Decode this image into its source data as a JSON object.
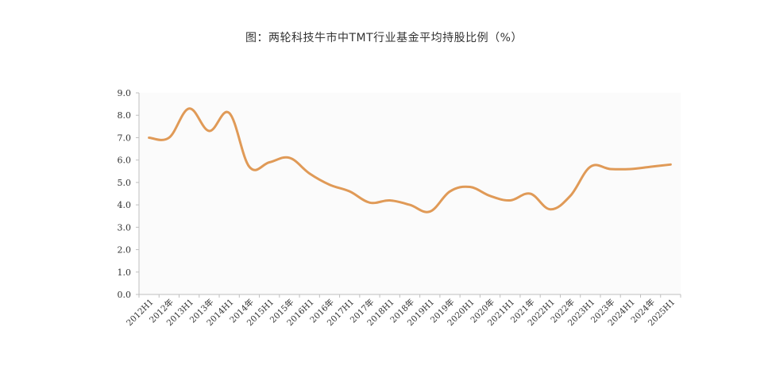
{
  "chart_data": {
    "type": "line",
    "title": "图：两轮科技牛市中TMT行业基金平均持股比例（%）",
    "xlabel": "",
    "ylabel": "",
    "ylim": [
      0,
      9
    ],
    "y_ticks": [
      "0.0",
      "1.0",
      "2.0",
      "3.0",
      "4.0",
      "5.0",
      "6.0",
      "7.0",
      "8.0",
      "9.0"
    ],
    "grid": false,
    "legend": "none",
    "categories": [
      "2012H1",
      "2012年",
      "2013H1",
      "2013年",
      "2014H1",
      "2014年",
      "2015H1",
      "2015年",
      "2016H1",
      "2016年",
      "2017H1",
      "2017年",
      "2018H1",
      "2018年",
      "2019H1",
      "2019年",
      "2020H1",
      "2020年",
      "2021H1",
      "2021年",
      "2022H1",
      "2022年",
      "2023H1",
      "2023年",
      "2024H1",
      "2024年",
      "2025H1"
    ],
    "series": [
      {
        "values": [
          7.0,
          7.0,
          8.3,
          7.3,
          8.1,
          5.7,
          5.9,
          6.1,
          5.4,
          4.9,
          4.6,
          4.1,
          4.2,
          4.0,
          3.7,
          4.6,
          4.8,
          4.4,
          4.2,
          4.5,
          3.8,
          4.4,
          5.7,
          5.6,
          5.6,
          5.7,
          5.8
        ],
        "color": "#E09A57"
      }
    ],
    "axis_color": "#bfbfbf",
    "plot_bg": "#fbfbfb"
  }
}
